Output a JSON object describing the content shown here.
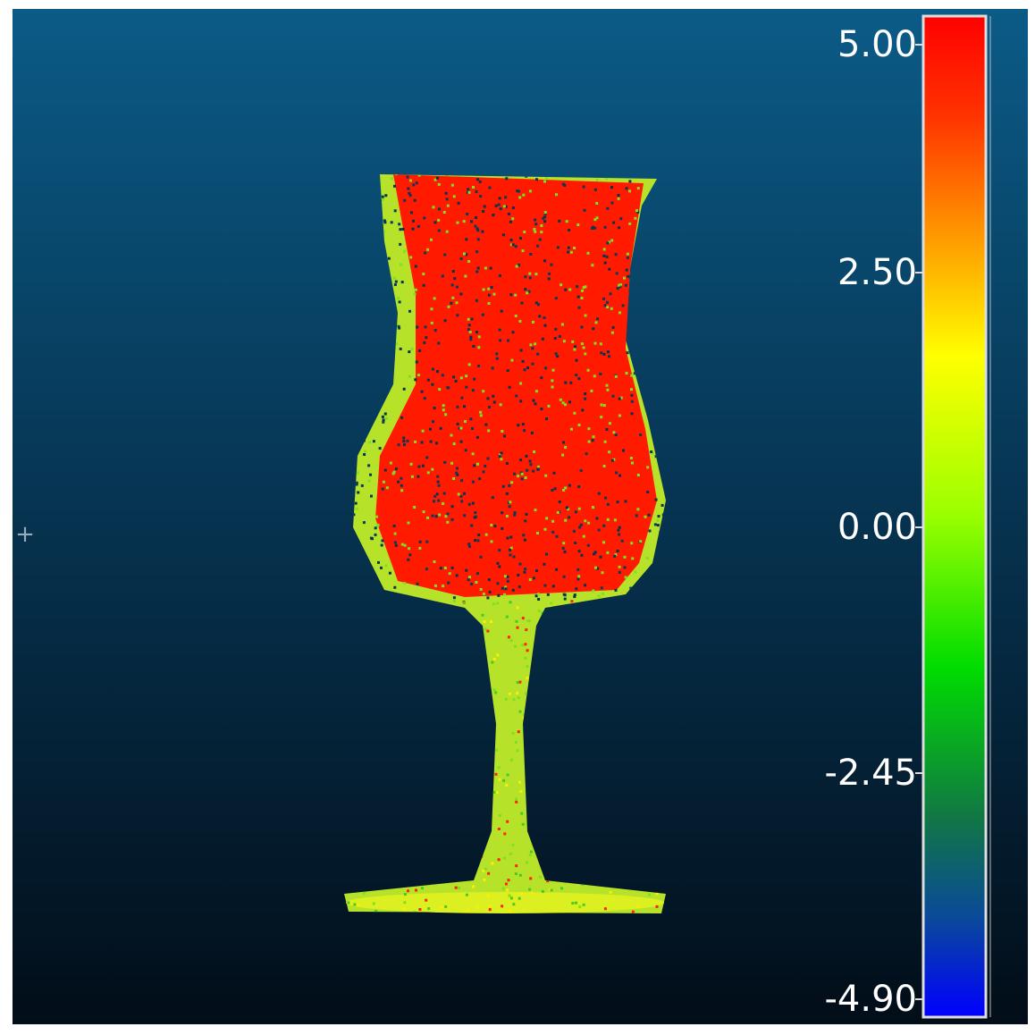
{
  "colorbar": {
    "labels": [
      "5.00",
      "2.50",
      "0.00",
      "-2.45",
      "-4.90"
    ]
  }
}
